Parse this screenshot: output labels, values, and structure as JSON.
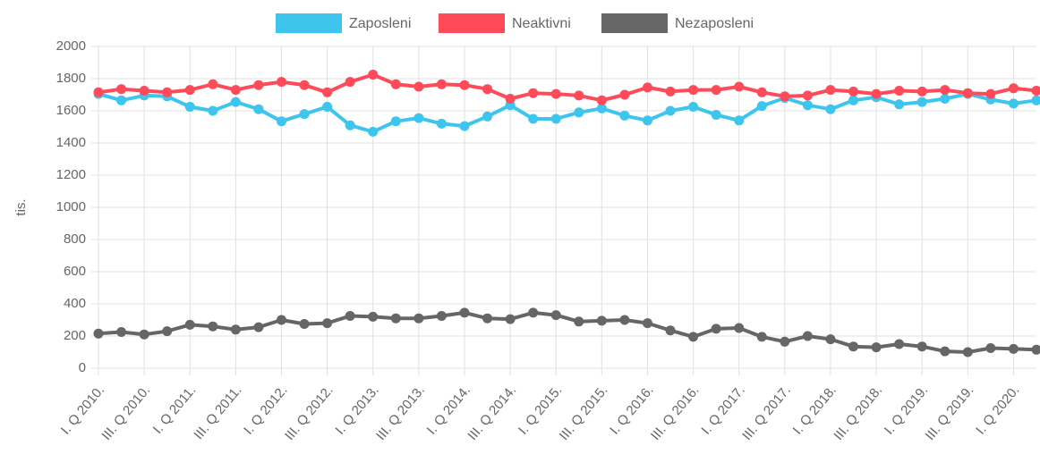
{
  "chart_data": {
    "type": "line",
    "y_label": "tis.",
    "categories": [
      "I. Q 2010.",
      null,
      "III. Q 2010.",
      null,
      "I. Q 2011.",
      null,
      "III. Q 2011.",
      null,
      "I. Q 2012.",
      null,
      "III. Q 2012.",
      null,
      "I. Q 2013.",
      null,
      "III. Q 2013.",
      null,
      "I. Q 2014.",
      null,
      "III. Q 2014.",
      null,
      "I. Q 2015.",
      null,
      "III. Q 2015.",
      null,
      "I. Q 2016.",
      null,
      "III. Q 2016.",
      null,
      "I. Q 2017.",
      null,
      "III. Q 2017.",
      null,
      "I. Q 2018.",
      null,
      "III. Q 2018.",
      null,
      "I. Q 2019.",
      null,
      "III. Q 2019.",
      null,
      "I. Q 2020.",
      null
    ],
    "series": [
      {
        "name": "Zaposleni",
        "color": "#3ec5ee",
        "values": [
          1705,
          1665,
          1695,
          1690,
          1625,
          1600,
          1655,
          1610,
          1535,
          1580,
          1625,
          1510,
          1470,
          1535,
          1555,
          1520,
          1505,
          1565,
          1635,
          1550,
          1550,
          1590,
          1615,
          1570,
          1540,
          1600,
          1625,
          1575,
          1540,
          1630,
          1680,
          1635,
          1610,
          1665,
          1685,
          1640,
          1655,
          1675,
          1705,
          1670,
          1645,
          1665
        ]
      },
      {
        "name": "Neaktivni",
        "color": "#ff4a5a",
        "values": [
          1715,
          1735,
          1725,
          1715,
          1730,
          1765,
          1730,
          1760,
          1780,
          1760,
          1715,
          1780,
          1825,
          1765,
          1750,
          1765,
          1760,
          1735,
          1675,
          1710,
          1705,
          1695,
          1665,
          1700,
          1745,
          1720,
          1730,
          1730,
          1750,
          1715,
          1690,
          1695,
          1730,
          1720,
          1705,
          1725,
          1720,
          1730,
          1710,
          1705,
          1740,
          1725
        ]
      },
      {
        "name": "Nezaposleni",
        "color": "#666666",
        "values": [
          215,
          225,
          210,
          230,
          270,
          260,
          240,
          255,
          300,
          275,
          280,
          325,
          320,
          310,
          310,
          325,
          345,
          310,
          305,
          345,
          330,
          290,
          295,
          300,
          280,
          235,
          195,
          245,
          250,
          195,
          165,
          200,
          180,
          135,
          130,
          150,
          135,
          105,
          100,
          125,
          120,
          115
        ]
      }
    ],
    "ylim": [
      0,
      2000
    ],
    "yticks": [
      0,
      200,
      400,
      600,
      800,
      1000,
      1200,
      1400,
      1600,
      1800,
      2000
    ],
    "grid": true,
    "legend": "top"
  }
}
